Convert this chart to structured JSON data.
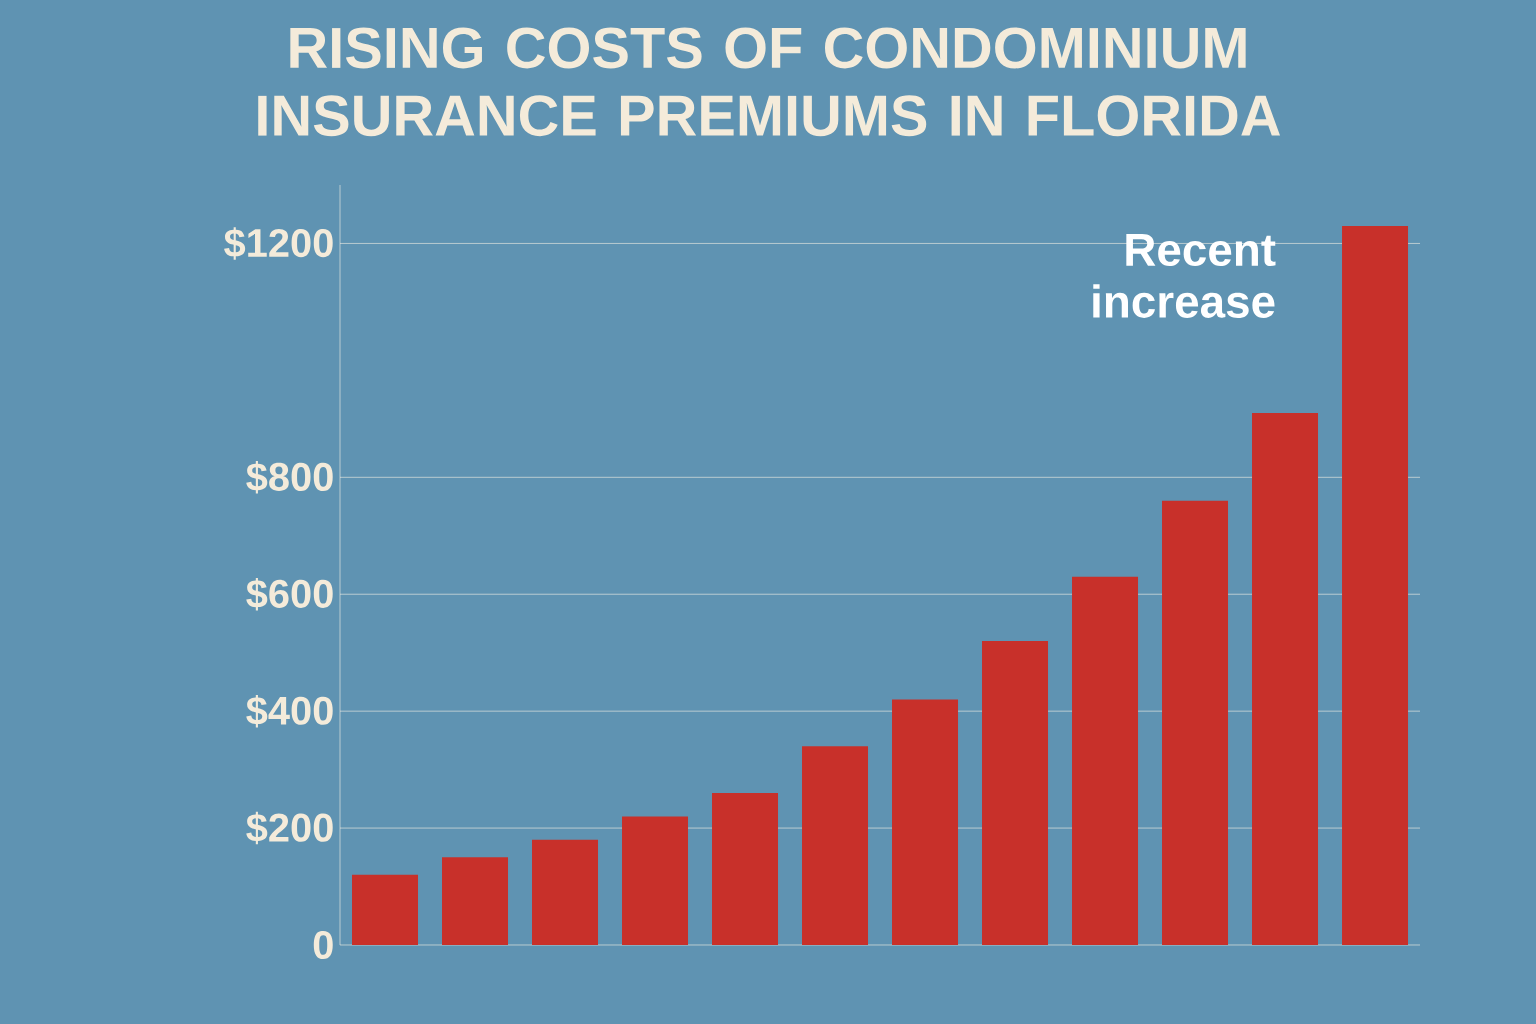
{
  "chart_data": {
    "type": "bar",
    "title": "RISING COSTS OF CONDOMINIUM INSURANCE PREMIUMS IN FLORIDA",
    "categories": [
      null,
      null,
      null,
      null,
      null,
      null,
      null,
      null,
      null,
      null,
      null,
      null
    ],
    "values": [
      120,
      150,
      180,
      220,
      260,
      340,
      420,
      520,
      630,
      760,
      910,
      1230
    ],
    "color": "#c8302a",
    "ylim": [
      0,
      1300
    ],
    "yticks": [
      {
        "value": 0,
        "label": "0"
      },
      {
        "value": 200,
        "label": "$200"
      },
      {
        "value": 400,
        "label": "$400"
      },
      {
        "value": 600,
        "label": "$600"
      },
      {
        "value": 800,
        "label": "$800"
      },
      {
        "value": 1200,
        "label": "$1200"
      }
    ],
    "grid": "y",
    "annotations": [
      "Recent increase"
    ]
  }
}
